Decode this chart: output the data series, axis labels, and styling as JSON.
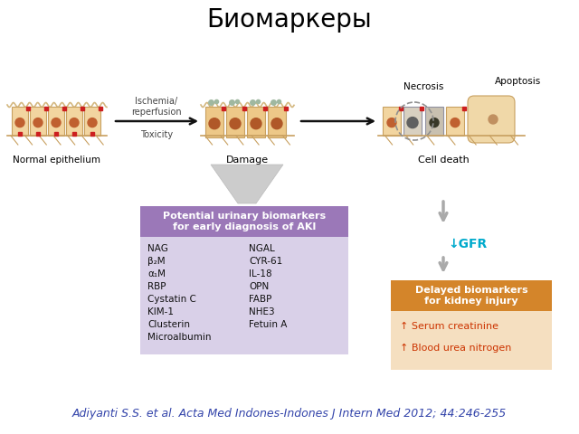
{
  "title": "Биомаркеры",
  "title_fontsize": 20,
  "title_color": "#000000",
  "bg_color": "#ffffff",
  "citation": "Adiyanti S.S. et al. Acta Med Indones-Indones J Intern Med 2012; 44:246-255",
  "citation_color": "#3344aa",
  "citation_fontsize": 9,
  "label_normal": "Normal epithelium",
  "label_damage": "Damage",
  "label_celldeath": "Cell death",
  "label_necrosis": "Necrosis",
  "label_apoptosis": "Apoptosis",
  "label_ischemia": "Ischemia/\nreperfusion",
  "label_toxicity": "Toxicity",
  "box_urinary_title": "Potential urinary biomarkers\nfor early diagnosis of AKI",
  "box_urinary_title_bg": "#9b78b8",
  "box_urinary_body_bg": "#d9d0e8",
  "box_urinary_left": [
    "NAG",
    "β₂M",
    "α₁M",
    "RBP",
    "Cystatin C",
    "KIM-1",
    "Clusterin",
    "Microalbumin"
  ],
  "box_urinary_right": [
    "NGAL",
    "CYR-61",
    "IL-18",
    "OPN",
    "FABP",
    "NHE3",
    "Fetuin A"
  ],
  "box_delayed_title": "Delayed biomarkers\nfor kidney injury",
  "box_delayed_title_bg": "#d4852a",
  "box_delayed_body_bg": "#f5dfc0",
  "box_delayed_items": [
    "↑ Serum creatinine",
    "↑ Blood urea nitrogen"
  ],
  "box_delayed_item_color": "#cc3300",
  "gfr_text": "↓GFR",
  "gfr_color": "#00aacc",
  "arrow_color": "#111111",
  "down_arrow_color": "#aaaaaa",
  "cell_fill": "#f2d5a0",
  "cell_edge": "#c8a060",
  "nucleus_fill": "#c06030",
  "membrane_color": "#d4b880",
  "root_color": "#c8a060"
}
